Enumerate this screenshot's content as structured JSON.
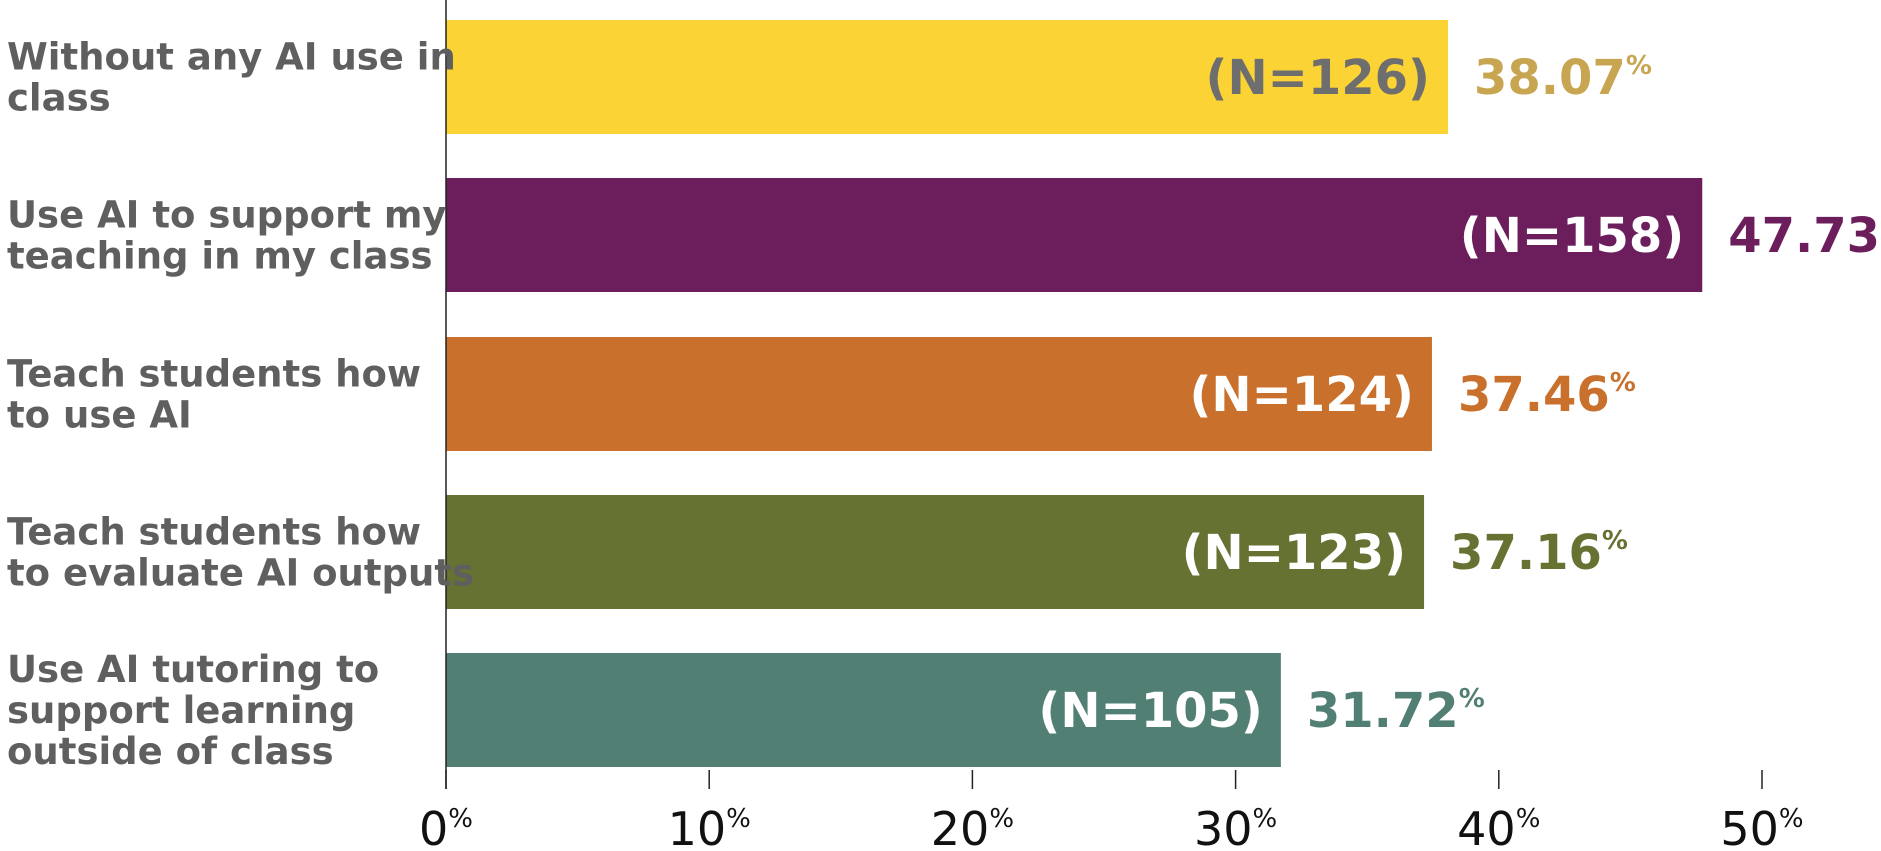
{
  "chart_data": {
    "type": "bar",
    "orientation": "horizontal",
    "title": "",
    "xlabel": "",
    "ylabel": "",
    "xlim": [
      0,
      50
    ],
    "ticks": [
      0,
      10,
      20,
      30,
      40,
      50
    ],
    "tick_unit": "%",
    "value_unit": "%",
    "grid": false,
    "legend": "none",
    "categories": [
      [
        "Without any AI use in",
        "class"
      ],
      [
        "Use AI to support my",
        "teaching in my class"
      ],
      [
        "Teach students how",
        "to use AI"
      ],
      [
        "Teach students how",
        "to evaluate AI outputs"
      ],
      [
        "Use AI tutoring to",
        "support learning",
        "outside of class"
      ]
    ],
    "values": [
      38.07,
      47.73,
      37.46,
      37.16,
      31.72
    ],
    "value_labels": [
      "38.07",
      "47.73",
      "37.46",
      "37.16",
      "31.72"
    ],
    "counts": [
      "(N=126)",
      "(N=158)",
      "(N=124)",
      "(N=123)",
      "(N=105)"
    ],
    "colors": [
      "#fbd334",
      "#6c1e5c",
      "#c9702c",
      "#667231",
      "#517f74"
    ],
    "value_label_colors": [
      "#c8a551",
      "#6c1e5c",
      "#c9702c",
      "#667231",
      "#517f74"
    ],
    "count_label_colors": [
      "#6e6e6e",
      "#ffffff",
      "#ffffff",
      "#ffffff",
      "#ffffff"
    ]
  }
}
